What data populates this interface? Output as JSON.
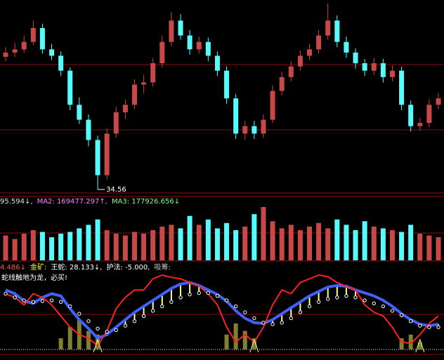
{
  "chart_data": {
    "type": "candlestick",
    "up_color": "#c84848",
    "down_color": "#54fcfc",
    "candles": [
      [
        47.0,
        47.9,
        46.6,
        47.4
      ],
      [
        47.4,
        48.3,
        47.0,
        47.7
      ],
      [
        47.7,
        49.0,
        47.4,
        48.4
      ],
      [
        48.4,
        50.4,
        48.1,
        49.7
      ],
      [
        49.7,
        50.1,
        47.3,
        47.7
      ],
      [
        47.7,
        48.2,
        46.7,
        47.1
      ],
      [
        47.1,
        47.5,
        45.2,
        45.7
      ],
      [
        45.7,
        46.0,
        42.0,
        42.5
      ],
      [
        42.5,
        43.2,
        40.7,
        41.1
      ],
      [
        41.1,
        41.6,
        38.6,
        39.2
      ],
      [
        39.2,
        39.6,
        34.56,
        35.9
      ],
      [
        35.9,
        40.3,
        35.5,
        39.8
      ],
      [
        39.8,
        42.3,
        39.4,
        41.8
      ],
      [
        41.8,
        43.0,
        41.2,
        42.5
      ],
      [
        42.5,
        44.9,
        42.1,
        44.4
      ],
      [
        44.4,
        45.3,
        43.6,
        44.6
      ],
      [
        44.6,
        46.9,
        44.2,
        46.4
      ],
      [
        46.4,
        49.0,
        46.0,
        48.4
      ],
      [
        48.4,
        51.2,
        48.0,
        50.4
      ],
      [
        50.4,
        51.0,
        48.6,
        49.0
      ],
      [
        49.0,
        49.5,
        47.2,
        47.7
      ],
      [
        47.7,
        48.9,
        47.3,
        48.4
      ],
      [
        48.4,
        48.8,
        46.6,
        47.1
      ],
      [
        47.1,
        47.5,
        45.2,
        45.7
      ],
      [
        45.7,
        46.1,
        42.6,
        43.1
      ],
      [
        43.1,
        43.5,
        39.3,
        39.8
      ],
      [
        39.8,
        41.0,
        39.2,
        40.5
      ],
      [
        40.5,
        41.0,
        39.3,
        39.8
      ],
      [
        39.8,
        41.6,
        39.4,
        41.1
      ],
      [
        41.1,
        44.3,
        40.8,
        43.8
      ],
      [
        43.8,
        45.6,
        43.4,
        45.1
      ],
      [
        45.1,
        46.6,
        44.7,
        46.1
      ],
      [
        46.1,
        47.6,
        45.7,
        47.1
      ],
      [
        47.1,
        48.2,
        46.7,
        47.7
      ],
      [
        47.7,
        49.5,
        47.3,
        49.0
      ],
      [
        49.0,
        52.0,
        48.6,
        50.4
      ],
      [
        50.4,
        50.9,
        47.9,
        48.4
      ],
      [
        48.4,
        48.9,
        46.9,
        47.4
      ],
      [
        47.4,
        47.8,
        45.9,
        46.4
      ],
      [
        46.4,
        46.8,
        45.2,
        45.7
      ],
      [
        45.7,
        46.9,
        45.3,
        46.4
      ],
      [
        46.4,
        46.8,
        44.6,
        45.1
      ],
      [
        45.1,
        46.2,
        44.7,
        45.7
      ],
      [
        45.7,
        46.1,
        42.0,
        42.5
      ],
      [
        42.5,
        42.9,
        40.0,
        40.5
      ],
      [
        40.5,
        41.3,
        40.1,
        40.8
      ],
      [
        40.8,
        43.0,
        40.4,
        42.5
      ],
      [
        42.5,
        43.6,
        42.1,
        43.1
      ]
    ],
    "volume": {
      "header": [
        {
          "text": "95.594↓,",
          "color": "#e0e0e0"
        },
        {
          "text": "MA2: 169477.297↑,",
          "color": "#ff80ff"
        },
        {
          "text": "MA3: 177926.656↓",
          "color": "#80ff80"
        }
      ],
      "values": [
        140000,
        120000,
        150000,
        170000,
        160000,
        130000,
        150000,
        160000,
        180000,
        200000,
        230000,
        170000,
        150000,
        140000,
        160000,
        150000,
        170000,
        190000,
        200000,
        180000,
        250000,
        200000,
        230000,
        180000,
        210000,
        170000,
        190000,
        260000,
        300000,
        220000,
        180000,
        200000,
        170000,
        190000,
        210000,
        180000,
        230000,
        200000,
        170000,
        220000,
        190000,
        180000,
        170000,
        160000,
        200000,
        150000,
        140000,
        130000
      ]
    },
    "indicator": {
      "header": [
        {
          "text": "4.486↓",
          "color": "#ff5050"
        },
        {
          "text": "金矿:",
          "color": "#ffff40"
        },
        {
          "text": "王蛇: 28.133↓,",
          "color": "#ffffff"
        },
        {
          "text": "护法: -5.000,",
          "color": "#ffffff"
        },
        {
          "text": "吸筹:",
          "color": "#c0c0c0"
        }
      ],
      "note": "蛇线触地为龙，必买!",
      "red_color": "#ff2020",
      "blue_color": "#4060ff",
      "dot_color": "#ffffff",
      "bar_color": "#ffff80",
      "base_bar_color": "#808030",
      "signal_color": "#ffff80",
      "red": [
        75,
        70,
        60,
        75,
        70,
        60,
        45,
        30,
        20,
        15,
        5,
        25,
        55,
        70,
        80,
        80,
        95,
        100,
        97,
        95,
        90,
        85,
        75,
        60,
        30,
        10,
        20,
        10,
        30,
        60,
        80,
        75,
        90,
        95,
        100,
        98,
        90,
        85,
        80,
        60,
        50,
        45,
        30,
        10,
        8,
        20,
        35,
        45
      ],
      "blue": [
        80,
        75,
        65,
        62,
        70,
        75,
        72,
        55,
        40,
        28,
        15,
        20,
        30,
        40,
        50,
        58,
        66,
        74,
        82,
        88,
        90,
        86,
        80,
        74,
        65,
        52,
        42,
        36,
        35,
        40,
        48,
        56,
        64,
        72,
        78,
        84,
        86,
        85,
        80,
        76,
        72,
        66,
        58,
        48,
        40,
        34,
        32,
        34
      ],
      "dots": [
        75,
        70,
        66,
        64,
        65,
        66,
        64,
        58,
        48,
        38,
        28,
        24,
        26,
        32,
        38,
        45,
        52,
        58,
        64,
        70,
        74,
        76,
        76,
        72,
        66,
        58,
        50,
        42,
        36,
        34,
        36,
        42,
        50,
        58,
        64,
        68,
        70,
        72,
        70,
        66,
        62,
        58,
        52,
        46,
        38,
        32,
        30,
        30
      ],
      "bars": [
        0,
        0,
        0,
        0,
        0,
        0,
        15,
        30,
        40,
        25,
        20,
        0,
        0,
        0,
        0,
        0,
        0,
        0,
        0,
        0,
        0,
        0,
        0,
        0,
        20,
        35,
        25,
        15,
        0,
        0,
        0,
        0,
        0,
        0,
        0,
        0,
        0,
        0,
        0,
        0,
        0,
        0,
        0,
        15,
        20,
        10,
        0,
        0
      ],
      "signals": [
        10,
        27,
        45
      ]
    }
  }
}
